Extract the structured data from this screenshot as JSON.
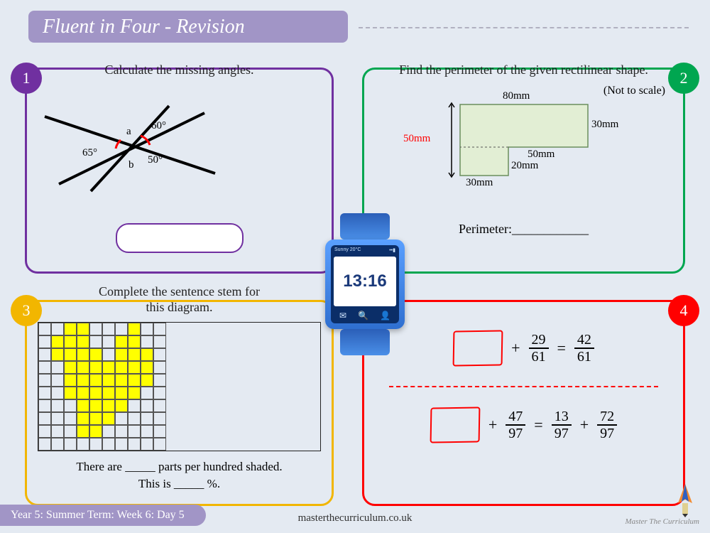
{
  "title": "Fluent in Four - Revision",
  "title_bg": "#a195c6",
  "page_bg": "#e4eaf2",
  "panels": {
    "p1": {
      "border_color": "#7030a0",
      "badge_color": "#7030a0",
      "badge_num": "1",
      "prompt": "Calculate the missing angles.",
      "angles": {
        "a_label": "a",
        "b_label": "b",
        "ang60": "60°",
        "ang65": "65°",
        "ang50": "50°",
        "arc_color": "#ff0000"
      }
    },
    "p2": {
      "border_color": "#00a650",
      "badge_color": "#00a650",
      "badge_num": "2",
      "prompt": "Find the perimeter of the given rectilinear shape.",
      "note": "(Not to scale)",
      "shape_fill": "#e2eed4",
      "shape_stroke": "#6b8e5d",
      "dims": {
        "top": "80mm",
        "right_upper": "30mm",
        "right_lower": "50mm",
        "step_h": "20mm",
        "bottom": "30mm",
        "left": "50mm",
        "left_color": "#ff0000"
      },
      "perimeter_label": "Perimeter:____________"
    },
    "p3": {
      "border_color": "#f2b600",
      "badge_color": "#f2b600",
      "badge_num": "3",
      "prompt_line1": "Complete the sentence stem for",
      "prompt_line2": "this diagram.",
      "shaded_color": "#ffff00",
      "unshaded_color": "#e4eaf2",
      "shaded_cells": [
        [
          0,
          2
        ],
        [
          0,
          3
        ],
        [
          0,
          7
        ],
        [
          1,
          1
        ],
        [
          1,
          2
        ],
        [
          1,
          3
        ],
        [
          1,
          6
        ],
        [
          1,
          7
        ],
        [
          2,
          1
        ],
        [
          2,
          2
        ],
        [
          2,
          3
        ],
        [
          2,
          4
        ],
        [
          2,
          6
        ],
        [
          2,
          7
        ],
        [
          2,
          8
        ],
        [
          3,
          2
        ],
        [
          3,
          3
        ],
        [
          3,
          4
        ],
        [
          3,
          5
        ],
        [
          3,
          6
        ],
        [
          3,
          7
        ],
        [
          3,
          8
        ],
        [
          4,
          2
        ],
        [
          4,
          3
        ],
        [
          4,
          4
        ],
        [
          4,
          5
        ],
        [
          4,
          6
        ],
        [
          4,
          7
        ],
        [
          4,
          8
        ],
        [
          5,
          2
        ],
        [
          5,
          3
        ],
        [
          5,
          4
        ],
        [
          5,
          5
        ],
        [
          5,
          6
        ],
        [
          5,
          7
        ],
        [
          6,
          3
        ],
        [
          6,
          4
        ],
        [
          6,
          5
        ],
        [
          6,
          6
        ],
        [
          7,
          3
        ],
        [
          7,
          4
        ],
        [
          7,
          5
        ],
        [
          8,
          3
        ],
        [
          8,
          4
        ]
      ],
      "stem_line1": "There are _____ parts per hundred shaded.",
      "stem_line2": "This is _____ %."
    },
    "p4": {
      "border_color": "#ff0000",
      "badge_color": "#ff0000",
      "badge_num": "4",
      "eq1": {
        "f1_num": "29",
        "f1_den": "61",
        "f2_num": "42",
        "f2_den": "61"
      },
      "eq2": {
        "f1_num": "47",
        "f1_den": "97",
        "f2_num": "13",
        "f2_den": "97",
        "f3_num": "72",
        "f3_den": "97"
      }
    }
  },
  "watch": {
    "time": "13:16",
    "status_left": "Sunny 20°C",
    "status_right": "••▮",
    "icon1": "✉",
    "icon2": "🔍",
    "icon3": "👤"
  },
  "footer": {
    "text": "Year 5: Summer Term: Week 6: Day 5",
    "bg": "#a195c6",
    "url": "masterthecurriculum.co.uk",
    "brand": "Master The Curriculum"
  }
}
